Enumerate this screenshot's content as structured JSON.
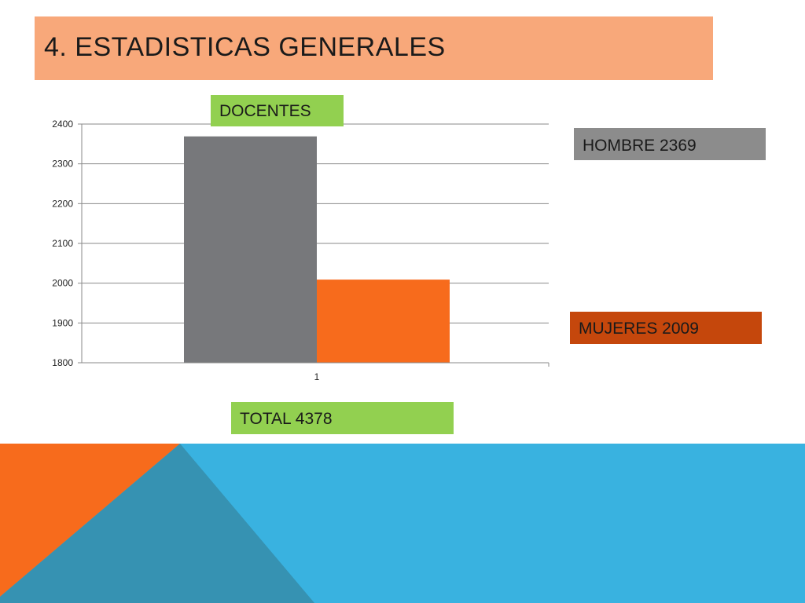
{
  "slide": {
    "title": "4. ESTADISTICAS GENERALES",
    "docentes_label": "DOCENTES",
    "total_label": "TOTAL 4378",
    "hombre_label": "HOMBRE  2369",
    "mujeres_label": "MUJERES  2009"
  },
  "colors": {
    "title_bg": "#f8a87a",
    "green_label": "#92d050",
    "gray_label": "#8c8c8c",
    "dark_orange_label": "#c5470c",
    "hombre_bar": "#77787b",
    "mujeres_bar": "#f76b1c",
    "footer_blue": "#39b2e0",
    "footer_orange": "#f76b1c",
    "footer_teal": "#3692b2"
  },
  "chart_data": {
    "type": "bar",
    "categories": [
      "1"
    ],
    "series": [
      {
        "name": "HOMBRE",
        "values": [
          2369
        ],
        "color": "#77787b"
      },
      {
        "name": "MUJERES",
        "values": [
          2009
        ],
        "color": "#f76b1c"
      }
    ],
    "yticks": [
      "1800",
      "1900",
      "2000",
      "2100",
      "2200",
      "2300",
      "2400"
    ],
    "ylim": [
      1800,
      2400
    ],
    "grid": true,
    "title": "",
    "xlabel": "",
    "ylabel": ""
  }
}
